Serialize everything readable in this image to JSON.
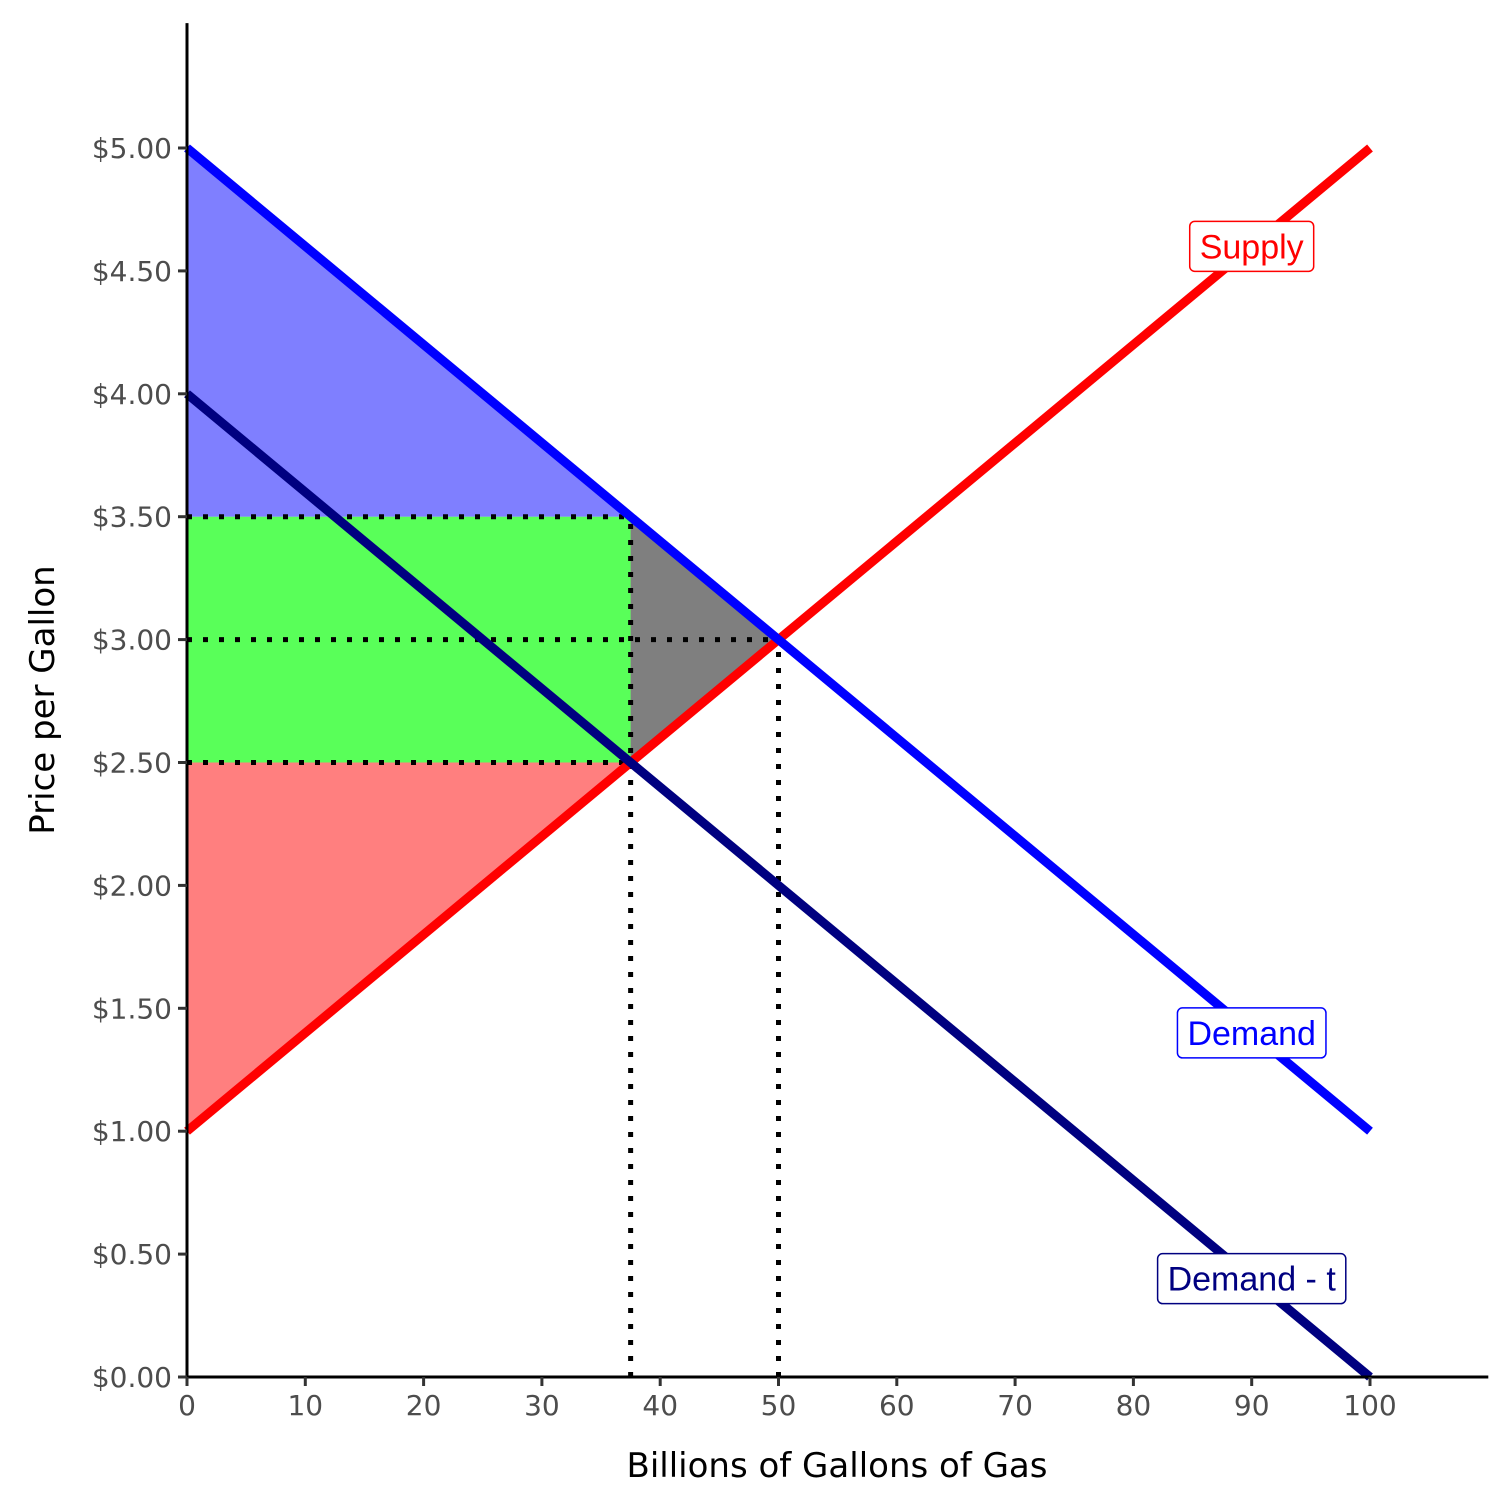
{
  "chart_data": {
    "type": "line",
    "title": "",
    "xlabel": "Billions of Gallons of Gas",
    "ylabel": "Price per Gallon",
    "xlim": [
      0,
      110
    ],
    "ylim": [
      0,
      5.5
    ],
    "x_ticks": [
      0,
      10,
      20,
      30,
      40,
      50,
      60,
      70,
      80,
      90,
      100
    ],
    "x_tick_labels": [
      "0",
      "10",
      "20",
      "30",
      "40",
      "50",
      "60",
      "70",
      "80",
      "90",
      "100"
    ],
    "y_ticks": [
      0,
      0.5,
      1,
      1.5,
      2,
      2.5,
      3,
      3.5,
      4,
      4.5,
      5
    ],
    "y_tick_labels": [
      "$0.00",
      "$0.50",
      "$1.00",
      "$1.50",
      "$2.00",
      "$2.50",
      "$3.00",
      "$3.50",
      "$4.00",
      "$4.50",
      "$5.00"
    ],
    "grid": false,
    "series": [
      {
        "name": "Supply",
        "color": "#ff0000",
        "x": [
          0,
          100
        ],
        "y": [
          1,
          5
        ],
        "label_at": [
          90,
          4.6
        ]
      },
      {
        "name": "Demand",
        "color": "#0000ff",
        "x": [
          0,
          100
        ],
        "y": [
          5,
          1
        ],
        "label_at": [
          90,
          1.4
        ]
      },
      {
        "name": "Demand - t",
        "color": "#000080",
        "x": [
          0,
          100
        ],
        "y": [
          4,
          0
        ],
        "label_at": [
          90,
          0.4
        ]
      }
    ],
    "regions": [
      {
        "color": "#0000ff",
        "opacity": 0.5,
        "points": [
          [
            0,
            5
          ],
          [
            37.5,
            3.5
          ],
          [
            0,
            3.5
          ]
        ]
      },
      {
        "color": "#00ff00",
        "opacity": 0.65,
        "points": [
          [
            0,
            3.5
          ],
          [
            37.5,
            3.5
          ],
          [
            37.5,
            2.5
          ],
          [
            0,
            2.5
          ]
        ]
      },
      {
        "color": "#ff0000",
        "opacity": 0.5,
        "points": [
          [
            0,
            2.5
          ],
          [
            37.5,
            2.5
          ],
          [
            0,
            1
          ]
        ]
      },
      {
        "color": "#000000",
        "opacity": 0.5,
        "points": [
          [
            37.5,
            3.5
          ],
          [
            50,
            3
          ],
          [
            37.5,
            2.5
          ]
        ]
      }
    ],
    "reference_lines": [
      {
        "x": [
          0,
          37.5
        ],
        "y": [
          3.5,
          3.5
        ]
      },
      {
        "x": [
          0,
          50
        ],
        "y": [
          3,
          3
        ]
      },
      {
        "x": [
          0,
          37.5
        ],
        "y": [
          2.5,
          2.5
        ]
      },
      {
        "x": [
          37.5,
          37.5
        ],
        "y": [
          0,
          3.5
        ]
      },
      {
        "x": [
          50,
          50
        ],
        "y": [
          0,
          3
        ]
      }
    ]
  }
}
